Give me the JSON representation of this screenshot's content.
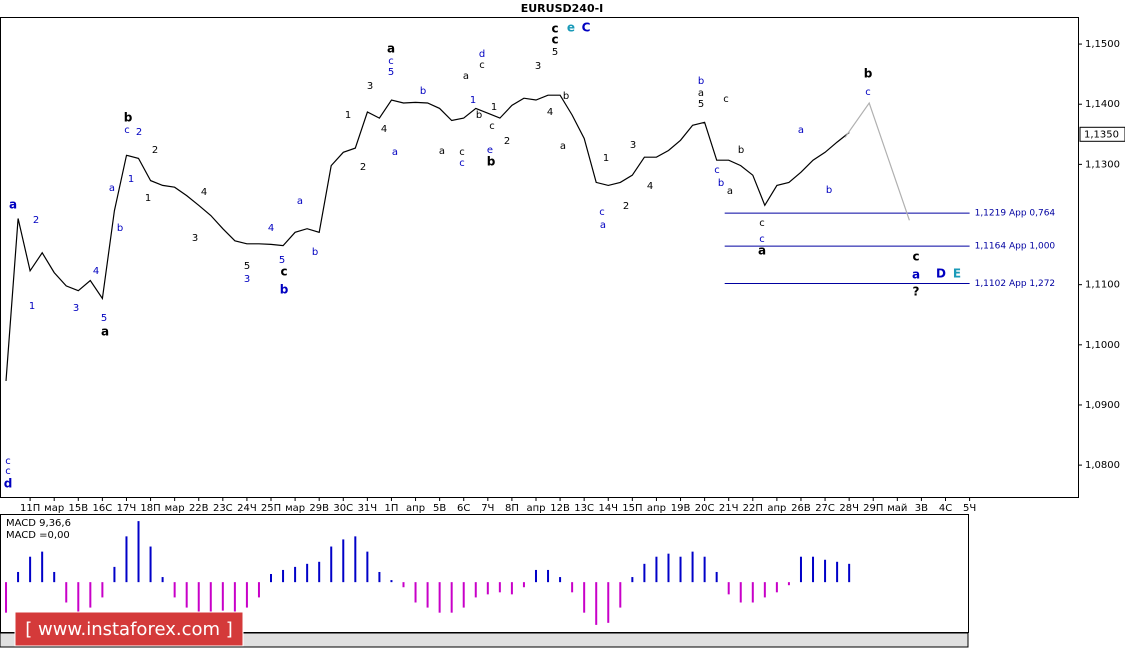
{
  "chart_data": {
    "type": "line",
    "title": "EURUSD240-I",
    "xlim": [
      -1.5,
      267
    ],
    "ylim": [
      1.0747,
      1.1545
    ],
    "xticks": [
      {
        "value": 6,
        "label": "11П"
      },
      {
        "value": 12,
        "label": "мар"
      },
      {
        "value": 18,
        "label": "15В"
      },
      {
        "value": 24,
        "label": "16С"
      },
      {
        "value": 30,
        "label": "17Ч"
      },
      {
        "value": 36,
        "label": "18П"
      },
      {
        "value": 42,
        "label": "мар"
      },
      {
        "value": 48,
        "label": "22В"
      },
      {
        "value": 54,
        "label": "23С"
      },
      {
        "value": 60,
        "label": "24Ч"
      },
      {
        "value": 66,
        "label": "25П"
      },
      {
        "value": 72,
        "label": "мар"
      },
      {
        "value": 78,
        "label": "29В"
      },
      {
        "value": 84,
        "label": "30С"
      },
      {
        "value": 90,
        "label": "31Ч"
      },
      {
        "value": 96,
        "label": "1П"
      },
      {
        "value": 102,
        "label": "апр"
      },
      {
        "value": 108,
        "label": "5В"
      },
      {
        "value": 114,
        "label": "6С"
      },
      {
        "value": 120,
        "label": "7Ч"
      },
      {
        "value": 126,
        "label": "8П"
      },
      {
        "value": 132,
        "label": "апр"
      },
      {
        "value": 138,
        "label": "12В"
      },
      {
        "value": 144,
        "label": "13С"
      },
      {
        "value": 150,
        "label": "14Ч"
      },
      {
        "value": 156,
        "label": "15П"
      },
      {
        "value": 162,
        "label": "апр"
      },
      {
        "value": 168,
        "label": "19В"
      },
      {
        "value": 174,
        "label": "20С"
      },
      {
        "value": 180,
        "label": "21Ч"
      },
      {
        "value": 186,
        "label": "22П"
      },
      {
        "value": 192,
        "label": "апр"
      },
      {
        "value": 198,
        "label": "26В"
      },
      {
        "value": 204,
        "label": "27С"
      },
      {
        "value": 210,
        "label": "28Ч"
      },
      {
        "value": 216,
        "label": "29П"
      },
      {
        "value": 222,
        "label": "май"
      },
      {
        "value": 228,
        "label": "3В"
      },
      {
        "value": 234,
        "label": "4С"
      },
      {
        "value": 240,
        "label": "5Ч"
      }
    ],
    "yticks": [
      {
        "value": 1.15,
        "label": "1,1500"
      },
      {
        "value": 1.14,
        "label": "1,1400"
      },
      {
        "value": 1.13,
        "label": "1,1300"
      },
      {
        "value": 1.11,
        "label": "1,1100"
      },
      {
        "value": 1.1,
        "label": "1,1000"
      },
      {
        "value": 1.09,
        "label": "1,0900"
      },
      {
        "value": 1.08,
        "label": "1,0800"
      }
    ],
    "last_price": {
      "value": 1.135,
      "label": "1,1350"
    },
    "series": [
      {
        "name": "EURUSD",
        "color": "#000000",
        "x": [
          0,
          3,
          6,
          9,
          12,
          15,
          18,
          21,
          24,
          27,
          30,
          33,
          36,
          39,
          42,
          45,
          48,
          51,
          54,
          57,
          60,
          63,
          66,
          69,
          72,
          75,
          78,
          81,
          84,
          87,
          90,
          93,
          96,
          99,
          102,
          105,
          108,
          111,
          114,
          117,
          120,
          123,
          126,
          129,
          132,
          135,
          138,
          141,
          144,
          147,
          150,
          153,
          156,
          159,
          162,
          165,
          168,
          171,
          174,
          177,
          180,
          183,
          186,
          189,
          192,
          195,
          198,
          201,
          204,
          207,
          210
        ],
        "values": [
          1.094,
          1.121,
          1.1123,
          1.1153,
          1.112,
          1.1098,
          1.109,
          1.1107,
          1.1077,
          1.1223,
          1.1315,
          1.131,
          1.1273,
          1.1265,
          1.1262,
          1.1248,
          1.1232,
          1.1215,
          1.1193,
          1.1173,
          1.1168,
          1.1168,
          1.1167,
          1.1165,
          1.1187,
          1.1193,
          1.1187,
          1.1298,
          1.132,
          1.1327,
          1.1387,
          1.1377,
          1.1407,
          1.1402,
          1.1403,
          1.1402,
          1.1393,
          1.1373,
          1.1377,
          1.1393,
          1.1385,
          1.1377,
          1.1398,
          1.141,
          1.1407,
          1.1415,
          1.1415,
          1.1382,
          1.1343,
          1.127,
          1.1265,
          1.127,
          1.1282,
          1.1312,
          1.1312,
          1.1323,
          1.134,
          1.1365,
          1.137,
          1.1307,
          1.1307,
          1.1298,
          1.1282,
          1.1232,
          1.1265,
          1.127,
          1.1287,
          1.1307,
          1.132,
          1.1337,
          1.1353
        ]
      },
      {
        "name": "Projection",
        "color": "#b0b0b0",
        "x": [
          209,
          215,
          225
        ],
        "values": [
          1.1345,
          1.1402,
          1.1207
        ]
      }
    ],
    "levels": [
      {
        "value": 1.1219,
        "label": "1,1219 App 0,764",
        "color": "#0000a0"
      },
      {
        "value": 1.1164,
        "label": "1,1164 App 1,000",
        "color": "#0000a0"
      },
      {
        "value": 1.1102,
        "label": "1,1102 App 1,272",
        "color": "#0000a0"
      }
    ],
    "annotations": [
      {
        "text": "a",
        "color": "#0000c0"
      },
      {
        "text": "2",
        "color": "#0000c0"
      },
      {
        "text": "1",
        "color": "#0000c0"
      },
      {
        "text": "3",
        "color": "#0000c0"
      },
      {
        "text": "4",
        "color": "#0000c0"
      },
      {
        "text": "5",
        "color": "#0000c0"
      },
      {
        "text": "a",
        "color": "#000000"
      },
      {
        "text": "c",
        "color": "#0000c0"
      },
      {
        "text": "c",
        "color": "#0000c0"
      },
      {
        "text": "d",
        "color": "#0000c0"
      },
      {
        "text": "a",
        "color": "#0000c0"
      },
      {
        "text": "b",
        "color": "#0000c0"
      },
      {
        "text": "b",
        "color": "#000000"
      },
      {
        "text": "c",
        "color": "#0000c0"
      },
      {
        "text": "2",
        "color": "#0000c0"
      },
      {
        "text": "1",
        "color": "#0000c0"
      },
      {
        "text": "2",
        "color": "#000000"
      },
      {
        "text": "1",
        "color": "#000000"
      },
      {
        "text": "4",
        "color": "#000000"
      },
      {
        "text": "3",
        "color": "#000000"
      },
      {
        "text": "5",
        "color": "#000000"
      },
      {
        "text": "3",
        "color": "#0000c0"
      },
      {
        "text": "4",
        "color": "#0000c0"
      },
      {
        "text": "5",
        "color": "#0000c0"
      },
      {
        "text": "c",
        "color": "#000000"
      },
      {
        "text": "b",
        "color": "#0000c0"
      },
      {
        "text": "a",
        "color": "#0000c0"
      },
      {
        "text": "b",
        "color": "#0000c0"
      },
      {
        "text": "1",
        "color": "#000000"
      },
      {
        "text": "2",
        "color": "#000000"
      },
      {
        "text": "3",
        "color": "#000000"
      },
      {
        "text": "4",
        "color": "#000000"
      },
      {
        "text": "a",
        "color": "#000000"
      },
      {
        "text": "c",
        "color": "#0000c0"
      },
      {
        "text": "5",
        "color": "#0000c0"
      },
      {
        "text": "a",
        "color": "#0000c0"
      },
      {
        "text": "b",
        "color": "#0000c0"
      },
      {
        "text": "a",
        "color": "#000000"
      },
      {
        "text": "c",
        "color": "#000000"
      },
      {
        "text": "c",
        "color": "#0000c0"
      },
      {
        "text": "a",
        "color": "#000000"
      },
      {
        "text": "d",
        "color": "#0000c0"
      },
      {
        "text": "c",
        "color": "#000000"
      },
      {
        "text": "1",
        "color": "#0000c0"
      },
      {
        "text": "b",
        "color": "#000000"
      },
      {
        "text": "e",
        "color": "#0000c0"
      },
      {
        "text": "b",
        "color": "#000000"
      },
      {
        "text": "1",
        "color": "#000000"
      },
      {
        "text": "c",
        "color": "#000000"
      },
      {
        "text": "2",
        "color": "#000000"
      },
      {
        "text": "3",
        "color": "#000000"
      },
      {
        "text": "c",
        "color": "#000000"
      },
      {
        "text": "c",
        "color": "#000000"
      },
      {
        "text": "5",
        "color": "#000000"
      },
      {
        "text": "e",
        "color": "#1a9ab8"
      },
      {
        "text": "C",
        "color": "#0000c0"
      },
      {
        "text": "b",
        "color": "#000000"
      },
      {
        "text": "4",
        "color": "#000000"
      },
      {
        "text": "a",
        "color": "#000000"
      },
      {
        "text": "1",
        "color": "#000000"
      },
      {
        "text": "c",
        "color": "#0000c0"
      },
      {
        "text": "a",
        "color": "#0000c0"
      },
      {
        "text": "2",
        "color": "#000000"
      },
      {
        "text": "3",
        "color": "#000000"
      },
      {
        "text": "4",
        "color": "#000000"
      },
      {
        "text": "b",
        "color": "#0000c0"
      },
      {
        "text": "a",
        "color": "#000000"
      },
      {
        "text": "5",
        "color": "#000000"
      },
      {
        "text": "c",
        "color": "#000000"
      },
      {
        "text": "b",
        "color": "#000000"
      },
      {
        "text": "c",
        "color": "#0000c0"
      },
      {
        "text": "b",
        "color": "#0000c0"
      },
      {
        "text": "a",
        "color": "#000000"
      },
      {
        "text": "c",
        "color": "#000000"
      },
      {
        "text": "c",
        "color": "#0000c0"
      },
      {
        "text": "a",
        "color": "#000000"
      },
      {
        "text": "a",
        "color": "#0000c0"
      },
      {
        "text": "b",
        "color": "#0000c0"
      },
      {
        "text": "b",
        "color": "#000000"
      },
      {
        "text": "c",
        "color": "#0000c0"
      },
      {
        "text": "c",
        "color": "#000000"
      },
      {
        "text": "a",
        "color": "#0000c0"
      },
      {
        "text": "D",
        "color": "#0000c0"
      },
      {
        "text": "E",
        "color": "#1a9ab8"
      },
      {
        "text": "?",
        "color": "#000000"
      }
    ],
    "macd": {
      "label": "MACD 9,36,6",
      "value_label": "MACD =0,00",
      "ylim": [
        -0.0049,
        0.0066
      ],
      "positive_color": "#0000c8",
      "negative_color": "#c800c8",
      "x": [
        0,
        3,
        6,
        9,
        12,
        15,
        18,
        21,
        24,
        27,
        30,
        33,
        36,
        39,
        42,
        45,
        48,
        51,
        54,
        57,
        60,
        63,
        66,
        69,
        72,
        75,
        78,
        81,
        84,
        87,
        90,
        93,
        96,
        99,
        102,
        105,
        108,
        111,
        114,
        117,
        120,
        123,
        126,
        129,
        132,
        135,
        138,
        141,
        144,
        147,
        150,
        153,
        156,
        159,
        162,
        165,
        168,
        171,
        174,
        177,
        180,
        183,
        186,
        189,
        192,
        195,
        198,
        201,
        204,
        207,
        210
      ],
      "values": [
        -0.003,
        0.001,
        0.0025,
        0.003,
        0.001,
        -0.002,
        -0.003,
        -0.0025,
        -0.0015,
        0.0015,
        0.0045,
        0.006,
        0.0035,
        0.0005,
        -0.0015,
        -0.0025,
        -0.003,
        -0.003,
        -0.0028,
        -0.003,
        -0.0025,
        -0.0015,
        0.0008,
        0.0012,
        0.0015,
        0.0018,
        0.002,
        0.0035,
        0.0042,
        0.0045,
        0.003,
        0.001,
        0.0002,
        -0.0005,
        -0.002,
        -0.0025,
        -0.003,
        -0.003,
        -0.0025,
        -0.0015,
        -0.0012,
        -0.001,
        -0.0012,
        -0.0005,
        0.0012,
        0.0012,
        0.0005,
        -0.001,
        -0.003,
        -0.0042,
        -0.004,
        -0.0025,
        0.0005,
        0.0018,
        0.0025,
        0.0028,
        0.0025,
        0.003,
        0.0025,
        0.001,
        -0.0012,
        -0.002,
        -0.002,
        -0.0015,
        -0.001,
        -0.0003,
        0.0025,
        0.0025,
        0.0022,
        0.002,
        0.0018
      ]
    },
    "watermark": "[ www.instaforex.com ]"
  }
}
